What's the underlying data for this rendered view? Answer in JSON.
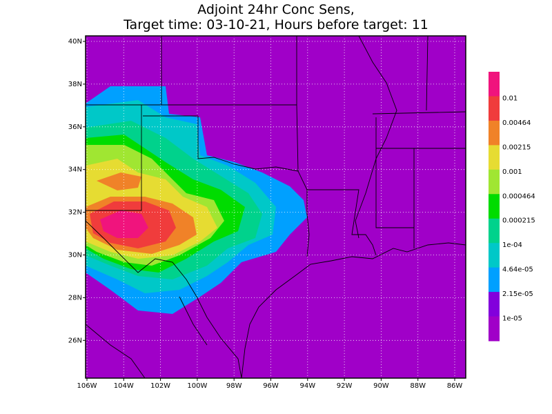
{
  "title": [
    "Adjoint 24hr Conc Sens,",
    "Target time: 03-10-21, Hours before target: 11"
  ],
  "lat_labels": [
    "40N",
    "38N",
    "36N",
    "34N",
    "32N",
    "30N",
    "28N",
    "26N"
  ],
  "lon_labels": [
    "106W",
    "104W",
    "102W",
    "100W",
    "98W",
    "96W",
    "94W",
    "92W",
    "90W",
    "88W",
    "86W"
  ],
  "colorbar": {
    "colors": [
      "#f0147d",
      "#f03c3c",
      "#f08228",
      "#e6dc32",
      "#a0e632",
      "#00dc00",
      "#00d28c",
      "#00c8c8",
      "#00a0ff",
      "#8200dc",
      "#a000c8"
    ],
    "labels": [
      "0.01",
      "0.00464",
      "0.00215",
      "0.001",
      "0.000464",
      "0.000215",
      "1e-04",
      "4.64e-05",
      "2.15e-05",
      "1e-05"
    ]
  }
}
